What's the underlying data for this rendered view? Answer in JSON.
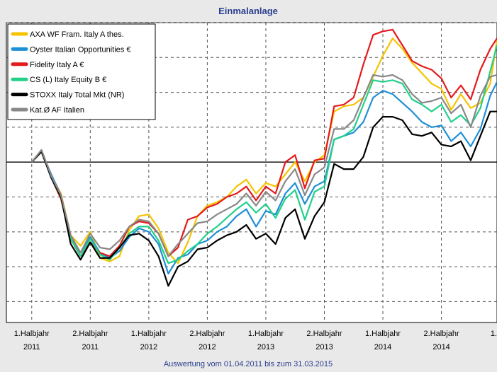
{
  "chart_data": {
    "type": "line",
    "title": "Einmalanlage",
    "footer": "Auswertung vom 01.04.2011 bis zum 31.03.2015",
    "x_ticks": [
      {
        "line1": "1.Halbjahr",
        "line2": "2011",
        "x": 0
      },
      {
        "line1": "2.Halbjahr",
        "line2": "2011",
        "x": 6
      },
      {
        "line1": "1.Halbjahr",
        "line2": "2012",
        "x": 12
      },
      {
        "line1": "2.Halbjahr",
        "line2": "2012",
        "x": 18
      },
      {
        "line1": "1.Halbjahr",
        "line2": "2013",
        "x": 24
      },
      {
        "line1": "2.Halbjahr",
        "line2": "2013",
        "x": 30
      },
      {
        "line1": "1.Halbjahr",
        "line2": "2014",
        "x": 36
      },
      {
        "line1": "2.Halbjahr",
        "line2": "2014",
        "x": 42
      },
      {
        "line1": "1.",
        "line2": "",
        "x": 48
      }
    ],
    "xlim": [
      -2.6,
      47.7
    ],
    "ylim": [
      -4.6,
      4.0
    ],
    "baseline": 0,
    "grid": true,
    "legend_position": "top-left",
    "series": [
      {
        "name": "AXA WF Fram. Italy A thes.",
        "color": "#f5c400",
        "x": [
          0,
          1,
          2,
          3,
          4,
          5,
          6,
          7,
          8,
          9,
          10,
          11,
          12,
          13,
          14,
          15,
          16,
          17,
          18,
          19,
          20,
          21,
          22,
          23,
          24,
          25,
          26,
          27,
          28,
          29,
          30,
          31,
          32,
          33,
          34,
          35,
          36,
          37,
          38,
          39,
          40,
          41,
          42,
          43,
          44,
          45,
          46,
          47,
          47.7
        ],
        "y": [
          0,
          0.35,
          -0.4,
          -0.9,
          -2.1,
          -2.4,
          -2.0,
          -2.75,
          -2.85,
          -2.7,
          -1.95,
          -1.55,
          -1.5,
          -1.9,
          -2.6,
          -2.9,
          -2.3,
          -1.55,
          -1.25,
          -1.15,
          -1.0,
          -0.7,
          -0.5,
          -0.9,
          -0.6,
          -0.7,
          -0.35,
          0.0,
          -0.55,
          0.0,
          0.2,
          1.45,
          1.6,
          1.65,
          1.85,
          2.45,
          3.05,
          3.55,
          3.25,
          2.85,
          2.55,
          2.25,
          2.1,
          1.5,
          1.95,
          1.55,
          1.7,
          2.25,
          3.5
        ]
      },
      {
        "name": "Oyster Italian Opportunities €",
        "color": "#1f8fd6",
        "x": [
          0,
          1,
          2,
          3,
          4,
          5,
          6,
          7,
          8,
          9,
          10,
          11,
          12,
          13,
          14,
          15,
          16,
          17,
          18,
          19,
          20,
          21,
          22,
          23,
          24,
          25,
          26,
          27,
          28,
          29,
          30,
          31,
          32,
          33,
          34,
          35,
          36,
          37,
          38,
          39,
          40,
          41,
          42,
          43,
          44,
          45,
          46,
          47,
          47.7
        ],
        "y": [
          0,
          0.3,
          -0.35,
          -0.95,
          -2.2,
          -2.6,
          -2.15,
          -2.6,
          -2.75,
          -2.55,
          -2.15,
          -1.9,
          -2.0,
          -2.35,
          -3.2,
          -2.75,
          -2.65,
          -2.35,
          -2.25,
          -2.0,
          -1.85,
          -1.55,
          -1.35,
          -1.85,
          -1.4,
          -1.5,
          -0.9,
          -0.6,
          -1.2,
          -0.7,
          -0.55,
          0.65,
          0.75,
          0.85,
          1.15,
          1.85,
          2.05,
          1.95,
          1.7,
          1.45,
          1.15,
          1.0,
          1.05,
          0.6,
          0.85,
          0.45,
          0.95,
          1.9,
          2.3
        ]
      },
      {
        "name": "Fidelity Italy A €",
        "color": "#e41a1c",
        "x": [
          0,
          1,
          2,
          3,
          4,
          5,
          6,
          7,
          8,
          9,
          10,
          11,
          12,
          13,
          14,
          15,
          16,
          17,
          18,
          19,
          20,
          21,
          22,
          23,
          24,
          25,
          26,
          27,
          28,
          29,
          30,
          31,
          32,
          33,
          34,
          35,
          36,
          37,
          38,
          39,
          40,
          41,
          42,
          43,
          44,
          45,
          46,
          47,
          47.7
        ],
        "y": [
          0,
          0.3,
          -0.45,
          -1.05,
          -2.2,
          -2.7,
          -2.3,
          -2.6,
          -2.7,
          -2.4,
          -1.85,
          -1.7,
          -1.75,
          -2.05,
          -2.7,
          -2.45,
          -1.65,
          -1.55,
          -1.3,
          -1.2,
          -1.0,
          -0.9,
          -0.7,
          -1.1,
          -0.7,
          -0.9,
          0.0,
          0.2,
          -0.75,
          0.05,
          0.1,
          1.6,
          1.65,
          1.85,
          2.8,
          3.65,
          3.75,
          3.8,
          3.35,
          2.9,
          2.75,
          2.65,
          2.4,
          1.85,
          2.2,
          1.8,
          2.65,
          3.25,
          3.55
        ]
      },
      {
        "name": "CS (L) Italy Equity B €",
        "color": "#22d08a",
        "x": [
          0,
          1,
          2,
          3,
          4,
          5,
          6,
          7,
          8,
          9,
          10,
          11,
          12,
          13,
          14,
          15,
          16,
          17,
          18,
          19,
          20,
          21,
          22,
          23,
          24,
          25,
          26,
          27,
          28,
          29,
          30,
          31,
          32,
          33,
          34,
          35,
          36,
          37,
          38,
          39,
          40,
          41,
          42,
          43,
          44,
          45,
          46,
          47,
          47.7
        ],
        "y": [
          0,
          0.35,
          -0.45,
          -1.0,
          -2.2,
          -2.7,
          -2.2,
          -2.65,
          -2.8,
          -2.45,
          -2.05,
          -1.85,
          -1.85,
          -2.25,
          -2.9,
          -2.8,
          -2.55,
          -2.35,
          -2.05,
          -1.85,
          -1.6,
          -1.35,
          -1.15,
          -1.45,
          -1.2,
          -1.6,
          -1.05,
          -0.8,
          -1.65,
          -0.85,
          -0.7,
          0.65,
          0.75,
          0.95,
          1.65,
          2.35,
          2.3,
          2.35,
          2.25,
          1.8,
          1.65,
          1.45,
          1.65,
          1.15,
          1.35,
          1.05,
          1.55,
          2.6,
          3.35
        ]
      },
      {
        "name": "STOXX Italy Total Mkt (NR)",
        "color": "#000000",
        "x": [
          0,
          1,
          2,
          3,
          4,
          5,
          6,
          7,
          8,
          9,
          10,
          11,
          12,
          13,
          14,
          15,
          16,
          17,
          18,
          19,
          20,
          21,
          22,
          23,
          24,
          25,
          26,
          27,
          28,
          29,
          30,
          31,
          32,
          33,
          34,
          35,
          36,
          37,
          38,
          39,
          40,
          41,
          42,
          43,
          44,
          45,
          46,
          47,
          47.7
        ],
        "y": [
          0,
          0.3,
          -0.45,
          -1.0,
          -2.35,
          -2.8,
          -2.3,
          -2.75,
          -2.75,
          -2.45,
          -2.1,
          -2.05,
          -2.25,
          -2.7,
          -3.55,
          -3.0,
          -2.85,
          -2.5,
          -2.45,
          -2.25,
          -2.1,
          -2.0,
          -1.8,
          -2.2,
          -2.05,
          -2.35,
          -1.6,
          -1.35,
          -2.2,
          -1.55,
          -1.15,
          -0.05,
          -0.2,
          -0.2,
          0.15,
          1.0,
          1.3,
          1.3,
          1.2,
          0.8,
          0.75,
          0.85,
          0.5,
          0.45,
          0.6,
          0.05,
          0.75,
          1.45,
          1.45
        ]
      },
      {
        "name": "Kat.Ø AF Italien",
        "color": "#888888",
        "x": [
          0,
          1,
          2,
          3,
          4,
          5,
          6,
          7,
          8,
          9,
          10,
          11,
          12,
          13,
          14,
          15,
          16,
          17,
          18,
          19,
          20,
          21,
          22,
          23,
          24,
          25,
          26,
          27,
          28,
          29,
          30,
          31,
          32,
          33,
          34,
          35,
          36,
          37,
          38,
          39,
          40,
          41,
          42,
          43,
          44,
          45,
          46,
          47,
          47.7
        ],
        "y": [
          0,
          0.35,
          -0.4,
          -0.95,
          -2.1,
          -2.6,
          -2.05,
          -2.45,
          -2.5,
          -2.25,
          -1.85,
          -1.65,
          -1.7,
          -2.05,
          -2.7,
          -2.35,
          -2.05,
          -1.75,
          -1.7,
          -1.5,
          -1.35,
          -1.2,
          -0.9,
          -1.25,
          -0.85,
          -1.1,
          -0.55,
          -0.2,
          -0.95,
          -0.35,
          -0.15,
          0.95,
          0.95,
          1.2,
          1.85,
          2.5,
          2.45,
          2.5,
          2.35,
          1.95,
          1.7,
          1.75,
          1.85,
          1.4,
          1.65,
          1.0,
          1.9,
          2.45,
          2.5
        ]
      }
    ]
  }
}
